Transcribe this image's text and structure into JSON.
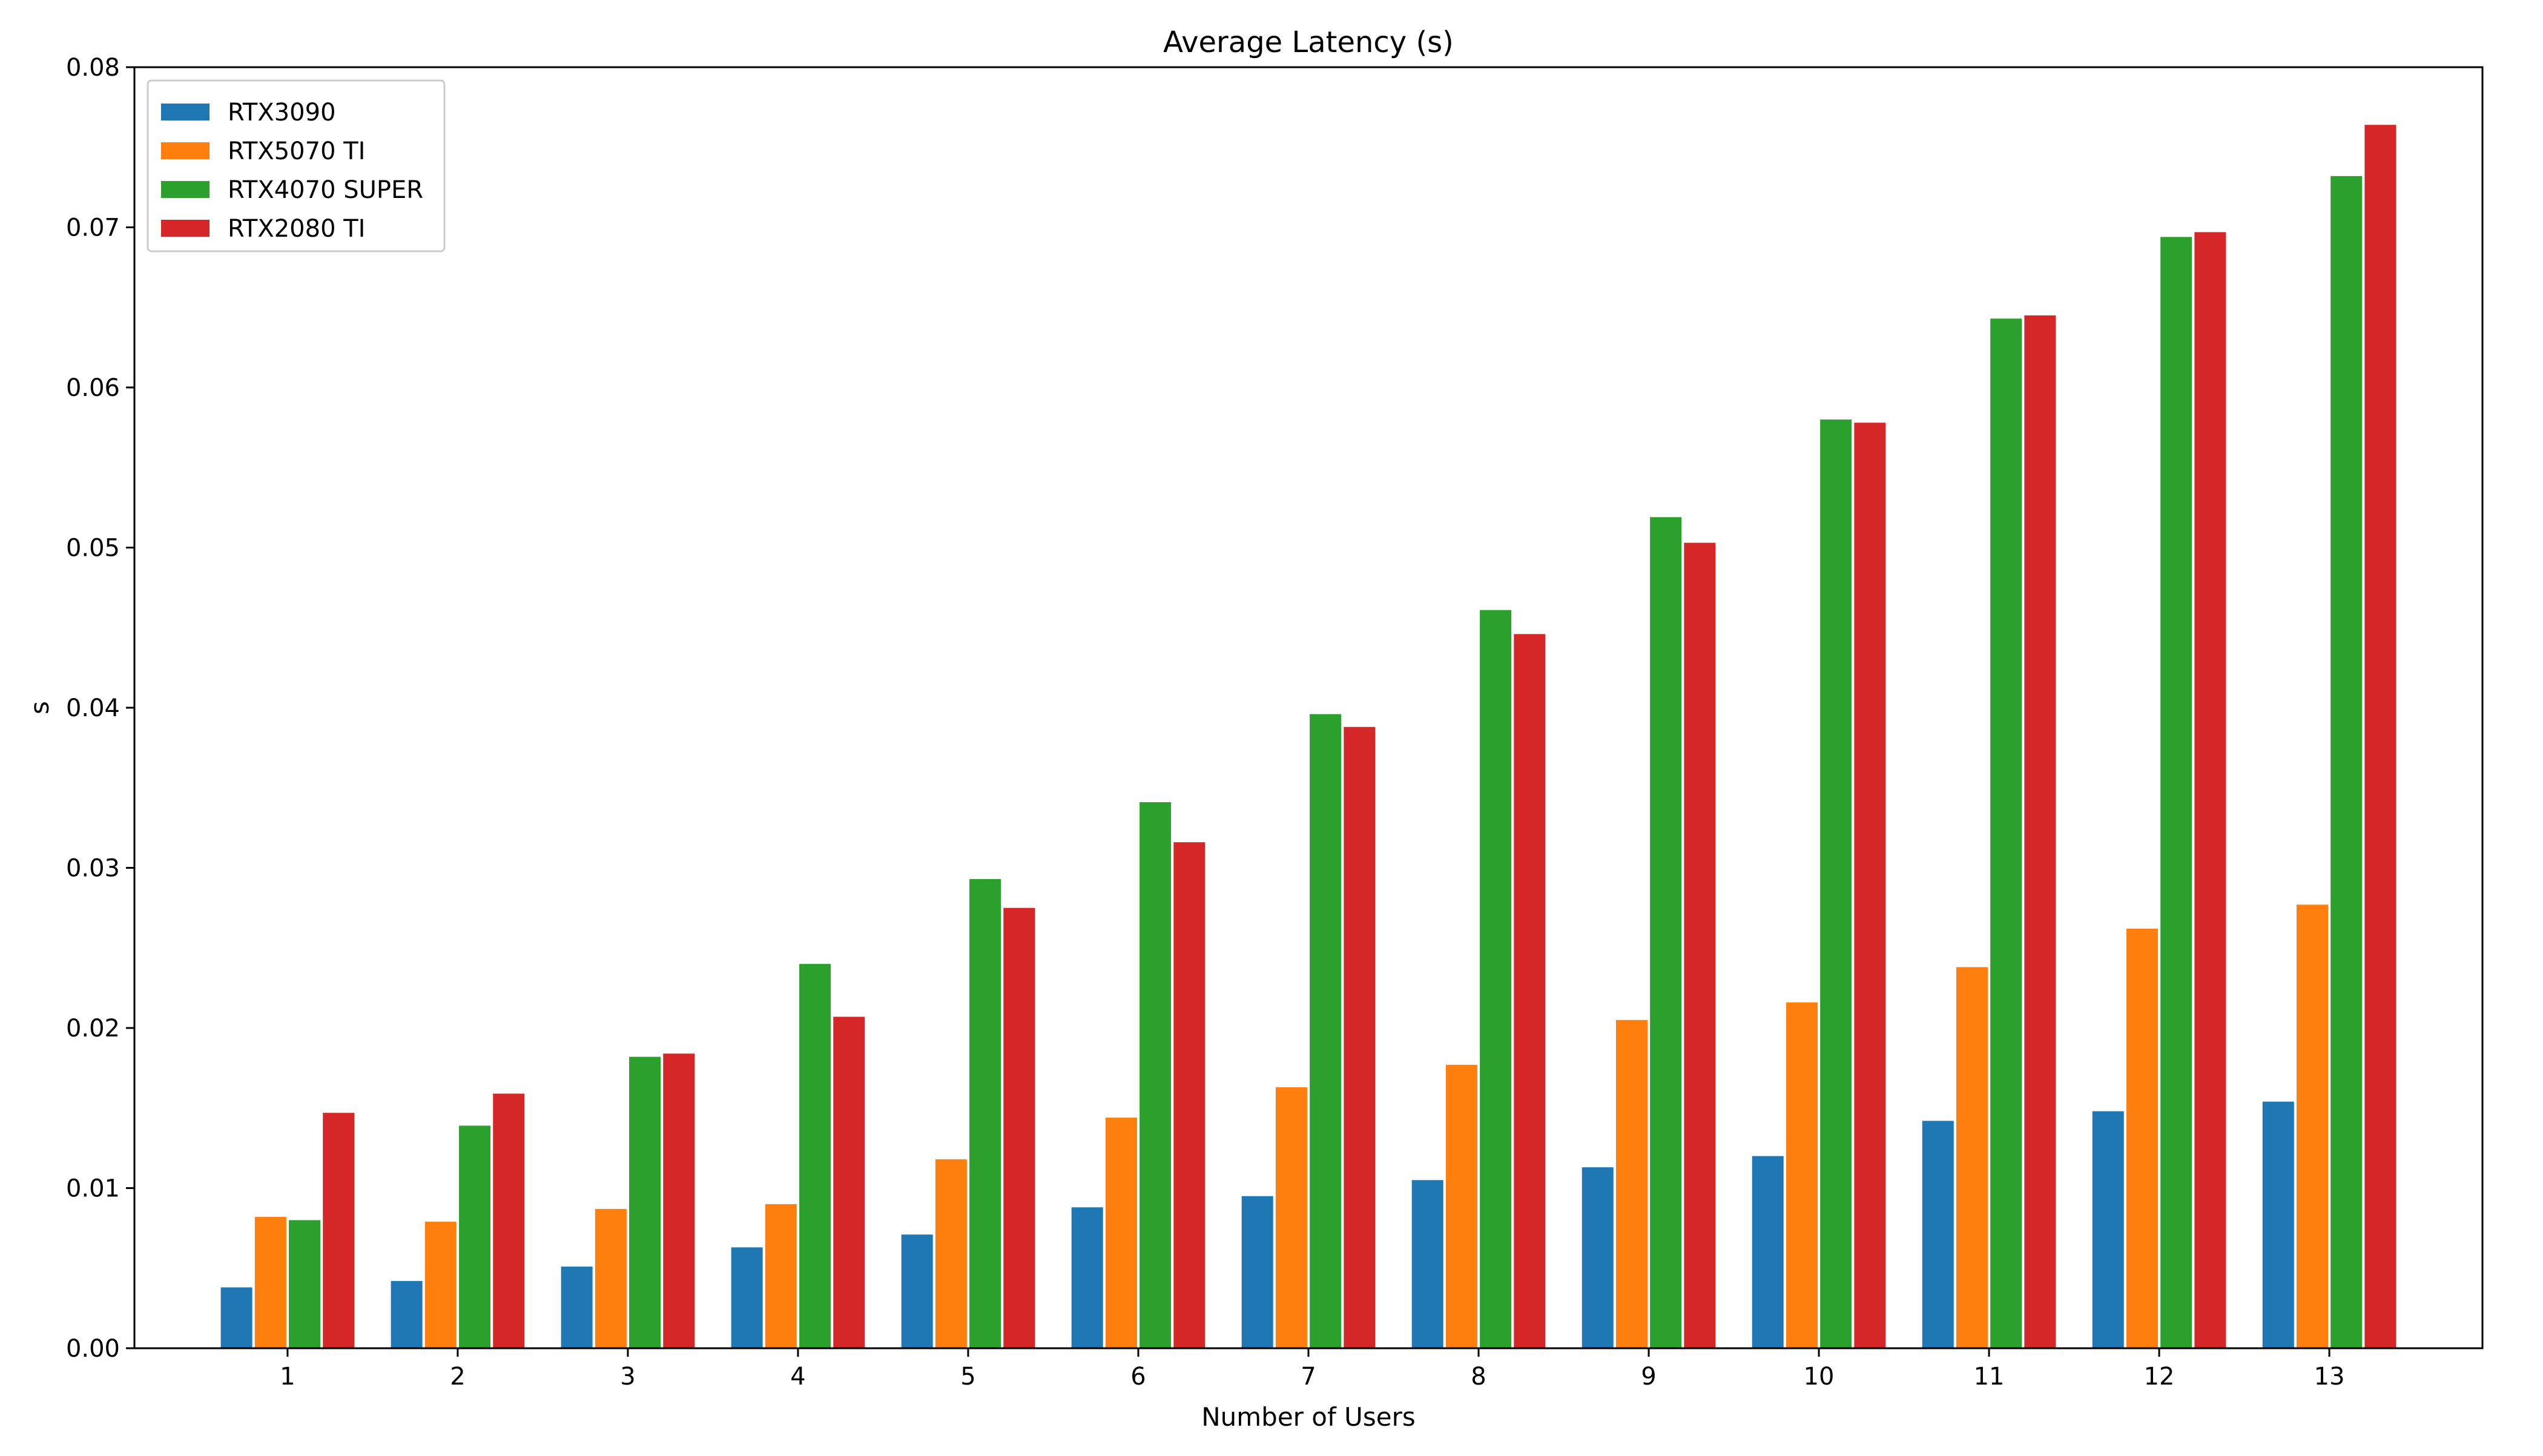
{
  "chart_data": {
    "type": "bar",
    "title": "Average Latency (s)",
    "xlabel": "Number of Users",
    "ylabel": "s",
    "ylim": [
      0,
      0.08
    ],
    "yticks": [
      0.0,
      0.01,
      0.02,
      0.03,
      0.04,
      0.05,
      0.06,
      0.07,
      0.08
    ],
    "ytick_labels": [
      "0.00",
      "0.01",
      "0.02",
      "0.03",
      "0.04",
      "0.05",
      "0.06",
      "0.07",
      "0.08"
    ],
    "categories": [
      "1",
      "2",
      "3",
      "4",
      "5",
      "6",
      "7",
      "8",
      "9",
      "10",
      "11",
      "12",
      "13"
    ],
    "grid": false,
    "legend_position": "top-left",
    "series": [
      {
        "name": "RTX3090",
        "color": "#1f77b4",
        "values": [
          0.0038,
          0.0042,
          0.0051,
          0.0063,
          0.0071,
          0.0088,
          0.0095,
          0.0105,
          0.0113,
          0.012,
          0.0142,
          0.0148,
          0.0154
        ]
      },
      {
        "name": "RTX5070 TI",
        "color": "#ff7f0e",
        "values": [
          0.0082,
          0.0079,
          0.0087,
          0.009,
          0.0118,
          0.0144,
          0.0163,
          0.0177,
          0.0205,
          0.0216,
          0.0238,
          0.0262,
          0.0277
        ]
      },
      {
        "name": "RTX4070 SUPER",
        "color": "#2ca02c",
        "values": [
          0.008,
          0.0139,
          0.0182,
          0.024,
          0.0293,
          0.0341,
          0.0396,
          0.0461,
          0.0519,
          0.058,
          0.0643,
          0.0694,
          0.0732
        ]
      },
      {
        "name": "RTX2080 TI",
        "color": "#d62728",
        "values": [
          0.0147,
          0.0159,
          0.0184,
          0.0207,
          0.0275,
          0.0316,
          0.0388,
          0.0446,
          0.0503,
          0.0578,
          0.0645,
          0.0697,
          0.0764
        ]
      }
    ]
  }
}
